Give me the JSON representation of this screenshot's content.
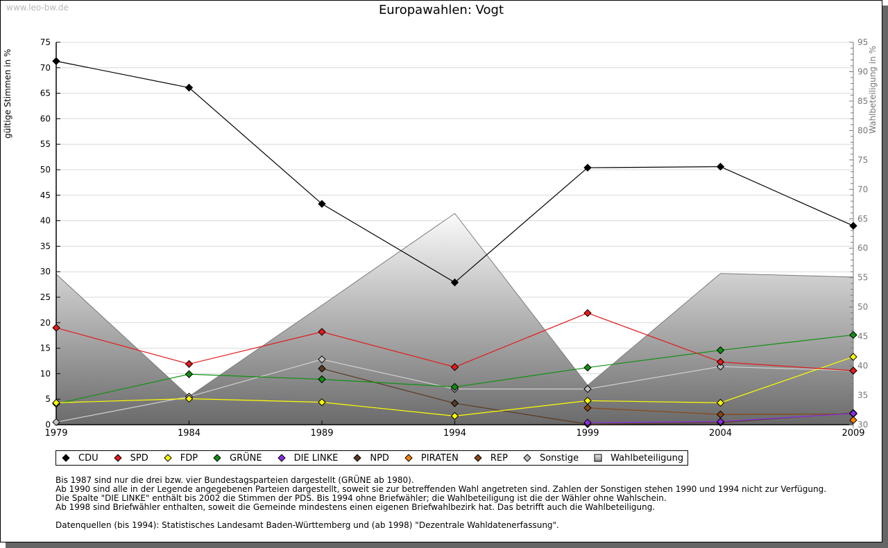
{
  "watermark": "www.leo-bw.de",
  "chart_data": {
    "type": "line",
    "title": "Europawahlen: Vogt",
    "ylabel": "gültige Stimmen in %",
    "y2label": "Wahlbeteiligung in %",
    "xlabel": "",
    "ylim": [
      0,
      75
    ],
    "y2lim": [
      30,
      95
    ],
    "yticks": [
      "0",
      "5",
      "10",
      "15",
      "20",
      "25",
      "30",
      "35",
      "40",
      "45",
      "50",
      "55",
      "60",
      "65",
      "70",
      "75"
    ],
    "y2ticks": [
      "30",
      "35",
      "40",
      "45",
      "50",
      "55",
      "60",
      "65",
      "70",
      "75",
      "80",
      "85",
      "90",
      "95"
    ],
    "categories": [
      "1979",
      "1984",
      "1989",
      "1994",
      "1999",
      "2004",
      "2009"
    ],
    "grid": true,
    "legend_position": "bottom",
    "series": [
      {
        "name": "CDU",
        "color": "#000000",
        "values": [
          71.3,
          66.1,
          43.3,
          27.9,
          50.4,
          50.6,
          39.0
        ]
      },
      {
        "name": "SPD",
        "color": "#e31a1c",
        "values": [
          19.0,
          11.9,
          18.2,
          11.3,
          21.9,
          12.3,
          10.6
        ]
      },
      {
        "name": "FDP",
        "color": "#ffff00",
        "values": [
          4.3,
          5.1,
          4.4,
          1.7,
          4.7,
          4.3,
          13.3
        ]
      },
      {
        "name": "GRÜNE",
        "color": "#109010",
        "values": [
          4.1,
          9.9,
          8.9,
          7.4,
          11.2,
          14.6,
          17.6
        ]
      },
      {
        "name": "DIE LINKE",
        "color": "#8a2be2",
        "values": [
          null,
          null,
          null,
          null,
          0.4,
          0.6,
          2.2
        ]
      },
      {
        "name": "NPD",
        "color": "#5a3a22",
        "values": [
          null,
          null,
          11.0,
          4.2,
          0.1,
          0.4,
          2.3
        ]
      },
      {
        "name": "PIRATEN",
        "color": "#ff8000",
        "values": [
          null,
          null,
          null,
          null,
          null,
          null,
          0.9
        ]
      },
      {
        "name": "REP",
        "color": "#8b4513",
        "values": [
          null,
          null,
          null,
          null,
          3.3,
          2.0,
          2.1
        ]
      },
      {
        "name": "Sonstige",
        "color": "#c0c0c0",
        "values": [
          0.5,
          5.5,
          12.8,
          7.0,
          7.0,
          11.4,
          10.6
        ]
      }
    ],
    "turnout": {
      "name": "Wahlbeteiligung",
      "axis": "right",
      "values": [
        55.6,
        34.8,
        50.3,
        65.9,
        36.7,
        55.7,
        55.1
      ]
    }
  },
  "legend": [
    "CDU",
    "SPD",
    "FDP",
    "GRÜNE",
    "DIE LINKE",
    "NPD",
    "PIRATEN",
    "REP",
    "Sonstige",
    "Wahlbeteiligung"
  ],
  "notes": {
    "line1": "Bis 1987 sind nur die drei bzw. vier Bundestagsparteien dargestellt (GRÜNE ab 1980).",
    "line2": "Ab 1990 sind alle in der Legende angegebenen Parteien dargestellt, soweit sie zur betreffenden Wahl angetreten sind. Zahlen der Sonstigen stehen 1990 und 1994 nicht zur Verfügung.",
    "line3": "Die Spalte \"DIE LINKE\" enthält bis 2002 die Stimmen der PDS. Bis 1994 ohne Briefwähler; die Wahlbeteiligung ist die der Wähler ohne Wahlschein.",
    "line4": "Ab 1998 sind Briefwähler enthalten, soweit die Gemeinde mindestens einen eigenen Briefwahlbezirk hat. Das betrifft auch die Wahlbeteiligung.",
    "sources": "Datenquellen (bis 1994): Statistisches Landesamt Baden-Württemberg und (ab 1998) \"Dezentrale Wahldatenerfassung\"."
  }
}
